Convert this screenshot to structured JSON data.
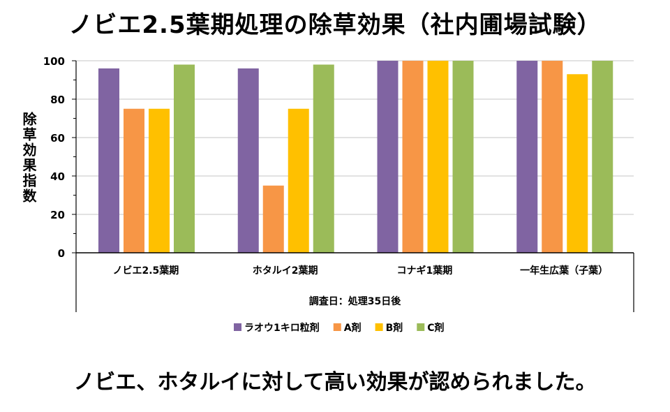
{
  "title": "ノビエ2.5葉期処理の除草効果（社内圃場試験）",
  "footer": "ノビエ、ホタルイに対して高い効果が認められました。",
  "chart_data": {
    "type": "bar",
    "title": "ノビエ2.5葉期処理の除草効果（社内圃場試験）",
    "ylabel": "除草効果指数",
    "xlabel": "調査日：処理35日後",
    "ylim": [
      0,
      100
    ],
    "yticks": [
      0,
      20,
      40,
      60,
      80,
      100
    ],
    "grid": true,
    "legend_position": "bottom",
    "categories": [
      "ノビエ2.5葉期",
      "ホタルイ2葉期",
      "コナギ1葉期",
      "一年生広葉（子葉）"
    ],
    "series": [
      {
        "name": "ラオウ1キロ粒剤",
        "color": "#8064a2",
        "values": [
          96,
          96,
          100,
          100
        ]
      },
      {
        "name": "A剤",
        "color": "#f79646",
        "values": [
          75,
          35,
          100,
          100
        ]
      },
      {
        "name": "B剤",
        "color": "#ffc000",
        "values": [
          75,
          75,
          100,
          93
        ]
      },
      {
        "name": "C剤",
        "color": "#9bbb59",
        "values": [
          98,
          98,
          100,
          100
        ]
      }
    ]
  }
}
